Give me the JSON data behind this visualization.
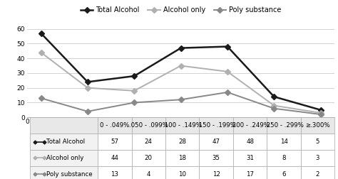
{
  "categories": [
    "0 - .049%",
    ".050 - .099%",
    ".100 - .149%",
    ".150 - .199%",
    ".200 - .249%",
    ".250 - .299%",
    "≥.300%"
  ],
  "series": {
    "Total Alcohol": [
      57,
      24,
      28,
      47,
      48,
      14,
      5
    ],
    "Alcohol only": [
      44,
      20,
      18,
      35,
      31,
      8,
      3
    ],
    "Poly substance": [
      13,
      4,
      10,
      12,
      17,
      6,
      2
    ]
  },
  "series_order": [
    "Total Alcohol",
    "Alcohol only",
    "Poly substance"
  ],
  "colors": {
    "Total Alcohol": "#1a1a1a",
    "Alcohol only": "#b0b0b0",
    "Poly substance": "#888888"
  },
  "line_widths": {
    "Total Alcohol": 1.8,
    "Alcohol only": 1.4,
    "Poly substance": 1.4
  },
  "marker": "D",
  "marker_size": 4,
  "ylim": [
    0,
    65
  ],
  "yticks": [
    0,
    10,
    20,
    30,
    40,
    50,
    60
  ],
  "bg_color": "#ffffff",
  "grid_color": "#cccccc",
  "table_values": [
    [
      57,
      24,
      28,
      47,
      48,
      14,
      5
    ],
    [
      44,
      20,
      18,
      35,
      31,
      8,
      3
    ],
    [
      13,
      4,
      10,
      12,
      17,
      6,
      2
    ]
  ],
  "legend_fontsize": 7.0,
  "axis_fontsize": 6.5,
  "table_fontsize": 6.2,
  "header_bg": "#e8e8e8",
  "row_label_bg": "#f2f2f2"
}
